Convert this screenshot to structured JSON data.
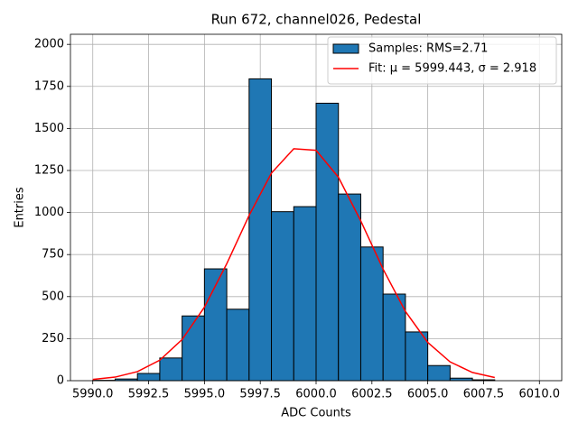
{
  "chart_data": {
    "type": "histogram",
    "title": "Run 672, channel026, Pedestal",
    "xlabel": "ADC Counts",
    "ylabel": "Entries",
    "bins": [
      5990,
      5991,
      5992,
      5993,
      5994,
      5995,
      5996,
      5997,
      5998,
      5999,
      6000,
      6001,
      6002,
      6003,
      6004,
      6005,
      6006,
      6007,
      6008
    ],
    "series": [
      {
        "name": "Samples: RMS=2.71",
        "color": "#1f77b4",
        "edgecolor": "#000000",
        "values": [
          2,
          10,
          43,
          135,
          385,
          665,
          425,
          1795,
          1005,
          1035,
          1650,
          1110,
          795,
          515,
          290,
          90,
          15,
          5
        ]
      },
      {
        "name": "Fit: μ = 5999.443, σ = 2.918",
        "type": "line",
        "color": "#ff0000",
        "x": [
          5990,
          5991,
          5992,
          5993,
          5994,
          5995,
          5996,
          5997,
          5998,
          5999,
          6000,
          6001,
          6002,
          6003,
          6004,
          6005,
          6006,
          6007,
          6008
        ],
        "values": [
          7.4,
          21.2,
          53.9,
          121.9,
          244.8,
          437.6,
          695.5,
          982.6,
          1234.4,
          1379.1,
          1369.9,
          1209.9,
          950.3,
          663.6,
          412.1,
          227.5,
          111.7,
          48.8,
          18.9
        ]
      }
    ],
    "xlim": [
      5989,
      6011
    ],
    "ylim": [
      0,
      2060
    ],
    "xticks": [
      {
        "value": 5990,
        "label": "5990.0"
      },
      {
        "value": 5992.5,
        "label": "5992.5"
      },
      {
        "value": 5995,
        "label": "5995.0"
      },
      {
        "value": 5997.5,
        "label": "5997.5"
      },
      {
        "value": 6000,
        "label": "6000.0"
      },
      {
        "value": 6002.5,
        "label": "6002.5"
      },
      {
        "value": 6005,
        "label": "6005.0"
      },
      {
        "value": 6007.5,
        "label": "6007.5"
      },
      {
        "value": 6010,
        "label": "6010.0"
      }
    ],
    "yticks": [
      0,
      250,
      500,
      750,
      1000,
      1250,
      1500,
      1750,
      2000
    ],
    "grid": true,
    "legend": "upper right"
  }
}
